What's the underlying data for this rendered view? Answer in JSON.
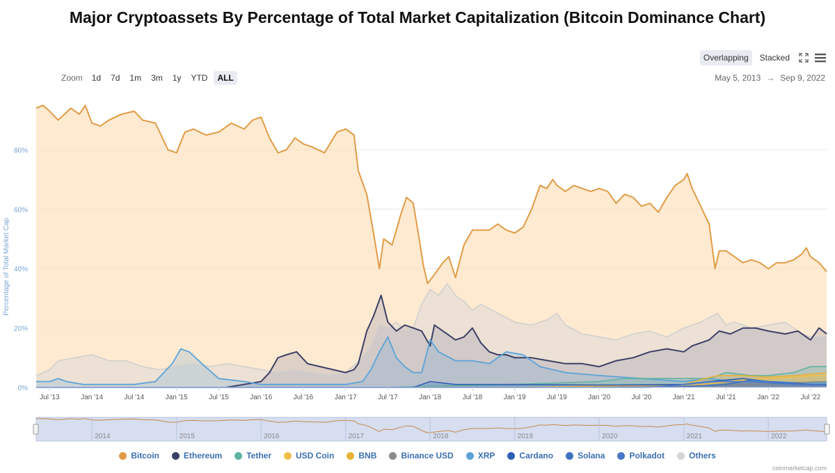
{
  "title": "Major Cryptoassets By Percentage of Total Market Capitalization (Bitcoin Dominance Chart)",
  "toolbar": {
    "zoom_label": "Zoom",
    "zoom_buttons": [
      "1d",
      "7d",
      "1m",
      "3m",
      "1y",
      "YTD",
      "ALL"
    ],
    "zoom_active": "ALL",
    "view_modes": [
      "Overlapping",
      "Stacked"
    ],
    "view_active": "Overlapping",
    "fullscreen_icon": "expand-icon",
    "menu_icon": "hamburger-menu-icon"
  },
  "date_range": {
    "from": "May 5, 2013",
    "arrow": "→",
    "to": "Sep 9, 2022"
  },
  "credit": "coinmarketcap.com",
  "colors": {
    "bitcoin": "#e09b45",
    "bitcoin_fill": "#fde8cf",
    "ethereum": "#3c3f66",
    "tether": "#5fb3a0",
    "usdcoin": "#f0c04a",
    "bnb": "#e8b23a",
    "binanceusd": "#8a8a8a",
    "xrp": "#5ba3d9",
    "cardano": "#2f5fb5",
    "solana": "#3f73c0",
    "polkadot": "#4a78c8",
    "others": "#cfcfcf",
    "navigator_fill": "#d6def0"
  },
  "chart_data": {
    "type": "line",
    "title": "Major Cryptoassets By Percentage of Total Market Capitalization (Bitcoin Dominance Chart)",
    "ylabel": "Percentage of Total Market Cap",
    "xlabel": "",
    "ylim": [
      0,
      100
    ],
    "yticks": [
      0,
      20,
      40,
      60,
      80
    ],
    "ytick_labels": [
      "0%",
      "20%",
      "40%",
      "60%",
      "80%"
    ],
    "xlim": [
      2013.34,
      2022.69
    ],
    "xticks": [
      2013.5,
      2014.0,
      2014.5,
      2015.0,
      2015.5,
      2016.0,
      2016.5,
      2017.0,
      2017.5,
      2018.0,
      2018.5,
      2019.0,
      2019.5,
      2020.0,
      2020.5,
      2021.0,
      2021.5,
      2022.0,
      2022.5
    ],
    "xtick_labels": [
      "Jul '13",
      "Jan '14",
      "Jul '14",
      "Jan '15",
      "Jul '15",
      "Jan '16",
      "Jul '16",
      "Jan '17",
      "Jul '17",
      "Jan '18",
      "Jul '18",
      "Jan '19",
      "Jul '19",
      "Jan '20",
      "Jul '20",
      "Jan '21",
      "Jul '21",
      "Jan '22",
      "Jul '22"
    ],
    "navigator_years": [
      "2014",
      "2015",
      "2016",
      "2017",
      "2018",
      "2019",
      "2020",
      "2021",
      "2022"
    ],
    "series": [
      {
        "name": "Bitcoin",
        "key": "bitcoin",
        "x": [
          2013.34,
          2013.42,
          2013.5,
          2013.6,
          2013.75,
          2013.85,
          2013.92,
          2014.0,
          2014.1,
          2014.2,
          2014.35,
          2014.5,
          2014.6,
          2014.75,
          2014.9,
          2015.0,
          2015.1,
          2015.2,
          2015.35,
          2015.5,
          2015.65,
          2015.8,
          2015.9,
          2016.0,
          2016.1,
          2016.2,
          2016.3,
          2016.4,
          2016.5,
          2016.6,
          2016.75,
          2016.9,
          2017.0,
          2017.1,
          2017.15,
          2017.25,
          2017.33,
          2017.4,
          2017.45,
          2017.55,
          2017.65,
          2017.72,
          2017.8,
          2017.87,
          2017.92,
          2017.97,
          2018.05,
          2018.15,
          2018.22,
          2018.3,
          2018.4,
          2018.5,
          2018.6,
          2018.7,
          2018.8,
          2018.9,
          2019.0,
          2019.1,
          2019.2,
          2019.3,
          2019.38,
          2019.45,
          2019.5,
          2019.6,
          2019.7,
          2019.8,
          2019.9,
          2020.0,
          2020.1,
          2020.2,
          2020.3,
          2020.4,
          2020.5,
          2020.6,
          2020.7,
          2020.8,
          2020.9,
          2021.0,
          2021.04,
          2021.1,
          2021.2,
          2021.3,
          2021.37,
          2021.42,
          2021.5,
          2021.6,
          2021.7,
          2021.8,
          2021.9,
          2022.0,
          2022.1,
          2022.2,
          2022.3,
          2022.4,
          2022.45,
          2022.5,
          2022.6,
          2022.69
        ],
        "y": [
          94,
          95,
          93,
          90,
          94,
          92,
          95,
          89,
          88,
          90,
          92,
          93,
          90,
          89,
          80,
          79,
          86,
          87,
          85,
          86,
          89,
          87,
          90,
          91,
          84,
          79,
          80,
          84,
          82,
          81,
          79,
          86,
          87,
          85,
          73,
          65,
          52,
          40,
          50,
          48,
          58,
          64,
          62,
          50,
          41,
          35,
          38,
          42,
          44,
          37,
          48,
          53,
          53,
          53,
          55,
          53,
          52,
          54,
          60,
          68,
          67,
          70,
          68,
          66,
          68,
          67,
          66,
          67,
          66,
          62,
          65,
          64,
          61,
          62,
          59,
          64,
          68,
          70,
          72,
          67,
          61,
          55,
          40,
          46,
          46,
          44,
          42,
          43,
          42,
          40,
          42,
          42,
          43,
          45,
          47,
          44,
          42,
          39
        ]
      },
      {
        "name": "Ethereum",
        "key": "ethereum",
        "x": [
          2013.34,
          2015.58,
          2015.8,
          2016.0,
          2016.1,
          2016.2,
          2016.3,
          2016.42,
          2016.55,
          2016.7,
          2016.85,
          2017.0,
          2017.1,
          2017.15,
          2017.25,
          2017.33,
          2017.42,
          2017.5,
          2017.6,
          2017.7,
          2017.8,
          2017.9,
          2018.0,
          2018.05,
          2018.1,
          2018.2,
          2018.3,
          2018.4,
          2018.5,
          2018.6,
          2018.7,
          2018.8,
          2018.9,
          2019.0,
          2019.2,
          2019.4,
          2019.6,
          2019.8,
          2020.0,
          2020.2,
          2020.4,
          2020.6,
          2020.8,
          2021.0,
          2021.1,
          2021.2,
          2021.3,
          2021.42,
          2021.55,
          2021.7,
          2021.85,
          2022.0,
          2022.2,
          2022.35,
          2022.5,
          2022.6,
          2022.69
        ],
        "y": [
          0,
          0,
          1,
          2,
          5,
          10,
          11,
          12,
          8,
          7,
          6,
          5,
          6,
          8,
          19,
          24,
          31,
          22,
          19,
          21,
          20,
          19,
          14,
          21,
          20,
          18,
          16,
          17,
          20,
          15,
          12,
          11,
          11,
          10,
          10,
          9,
          8,
          8,
          7,
          9,
          10,
          12,
          13,
          12,
          14,
          15,
          16,
          19,
          18,
          20,
          20,
          19,
          18,
          19,
          16,
          20,
          18
        ]
      },
      {
        "name": "Tether",
        "key": "tether",
        "x": [
          2013.34,
          2017.5,
          2018.0,
          2019.0,
          2020.0,
          2020.3,
          2020.6,
          2021.0,
          2021.3,
          2021.5,
          2021.8,
          2022.0,
          2022.3,
          2022.5,
          2022.69
        ],
        "y": [
          0,
          0,
          0.5,
          1,
          2,
          3,
          3,
          3,
          3,
          5,
          4,
          4,
          5,
          7,
          7
        ]
      },
      {
        "name": "USD Coin",
        "key": "usdcoin",
        "x": [
          2013.34,
          2020.5,
          2021.0,
          2021.4,
          2021.7,
          2022.0,
          2022.3,
          2022.5,
          2022.69
        ],
        "y": [
          0,
          0,
          0.5,
          1.5,
          2.5,
          3,
          3.5,
          4,
          4
        ]
      },
      {
        "name": "BNB",
        "key": "bnb",
        "x": [
          2013.34,
          2019.0,
          2020.0,
          2021.0,
          2021.25,
          2021.4,
          2021.7,
          2022.0,
          2022.3,
          2022.5,
          2022.69
        ],
        "y": [
          0,
          0,
          0.5,
          1,
          3,
          4,
          4,
          3.5,
          4,
          4.5,
          5
        ]
      },
      {
        "name": "Binance USD",
        "key": "binanceusd",
        "x": [
          2013.34,
          2019.7,
          2020.5,
          2021.0,
          2021.5,
          2022.0,
          2022.5,
          2022.69
        ],
        "y": [
          0,
          0,
          0.3,
          0.5,
          0.8,
          1.2,
          1.8,
          2
        ]
      },
      {
        "name": "XRP",
        "key": "xrp",
        "x": [
          2013.34,
          2013.5,
          2013.6,
          2013.7,
          2013.9,
          2014.2,
          2014.5,
          2014.75,
          2014.95,
          2015.05,
          2015.15,
          2015.3,
          2015.5,
          2015.8,
          2016.0,
          2016.5,
          2017.0,
          2017.2,
          2017.3,
          2017.4,
          2017.5,
          2017.6,
          2017.7,
          2017.8,
          2017.9,
          2018.0,
          2018.1,
          2018.3,
          2018.5,
          2018.7,
          2018.8,
          2018.9,
          2019.1,
          2019.3,
          2019.6,
          2020.0,
          2020.5,
          2021.0,
          2021.3,
          2021.6,
          2022.0,
          2022.5,
          2022.69
        ],
        "y": [
          2,
          2,
          3,
          2,
          1,
          1,
          1,
          2,
          8,
          13,
          12,
          8,
          3,
          2,
          1,
          1,
          1,
          2,
          6,
          12,
          17,
          10,
          7,
          5,
          5,
          16,
          12,
          9,
          9,
          8,
          10,
          12,
          11,
          7,
          5,
          4,
          3,
          2,
          3,
          2,
          2,
          1.5,
          1.5
        ]
      },
      {
        "name": "Cardano",
        "key": "cardano",
        "x": [
          2013.34,
          2017.8,
          2018.0,
          2018.3,
          2019.0,
          2020.0,
          2021.0,
          2021.3,
          2021.7,
          2022.0,
          2022.5,
          2022.69
        ],
        "y": [
          0,
          0,
          2,
          1,
          1,
          0.8,
          1,
          2,
          3,
          2,
          1,
          1
        ]
      },
      {
        "name": "Solana",
        "key": "solana",
        "x": [
          2013.34,
          2020.5,
          2021.0,
          2021.5,
          2021.8,
          2022.0,
          2022.4,
          2022.69
        ],
        "y": [
          0,
          0,
          0.2,
          1,
          2.5,
          2,
          1,
          1
        ]
      },
      {
        "name": "Polkadot",
        "key": "polkadot",
        "x": [
          2013.34,
          2020.6,
          2021.0,
          2021.3,
          2021.8,
          2022.0,
          2022.5,
          2022.69
        ],
        "y": [
          0,
          0,
          1,
          2,
          2,
          1.5,
          0.8,
          0.8
        ]
      },
      {
        "name": "Others",
        "key": "others",
        "x": [
          2013.34,
          2013.5,
          2013.6,
          2013.8,
          2014.0,
          2014.2,
          2014.4,
          2014.6,
          2014.8,
          2015.0,
          2015.2,
          2015.4,
          2015.6,
          2015.8,
          2016.0,
          2016.2,
          2016.4,
          2016.6,
          2016.8,
          2017.0,
          2017.2,
          2017.3,
          2017.4,
          2017.5,
          2017.6,
          2017.7,
          2017.8,
          2017.9,
          2018.0,
          2018.1,
          2018.2,
          2018.3,
          2018.4,
          2018.5,
          2018.6,
          2018.8,
          2019.0,
          2019.2,
          2019.4,
          2019.5,
          2019.6,
          2019.8,
          2020.0,
          2020.2,
          2020.4,
          2020.6,
          2020.8,
          2021.0,
          2021.2,
          2021.4,
          2021.5,
          2021.6,
          2021.8,
          2022.0,
          2022.2,
          2022.4,
          2022.5,
          2022.69
        ],
        "y": [
          4,
          6,
          9,
          10,
          11,
          9,
          9,
          7,
          6,
          7,
          8,
          7,
          8,
          7,
          6,
          5,
          6,
          5,
          4,
          5,
          10,
          14,
          21,
          20,
          22,
          19,
          20,
          28,
          33,
          31,
          35,
          31,
          29,
          26,
          28,
          25,
          22,
          21,
          23,
          25,
          21,
          18,
          17,
          16,
          18,
          19,
          17,
          20,
          22,
          25,
          21,
          22,
          20,
          21,
          22,
          18,
          17,
          17
        ]
      }
    ],
    "legend": [
      "Bitcoin",
      "Ethereum",
      "Tether",
      "USD Coin",
      "BNB",
      "Binance USD",
      "XRP",
      "Cardano",
      "Solana",
      "Polkadot",
      "Others"
    ]
  }
}
